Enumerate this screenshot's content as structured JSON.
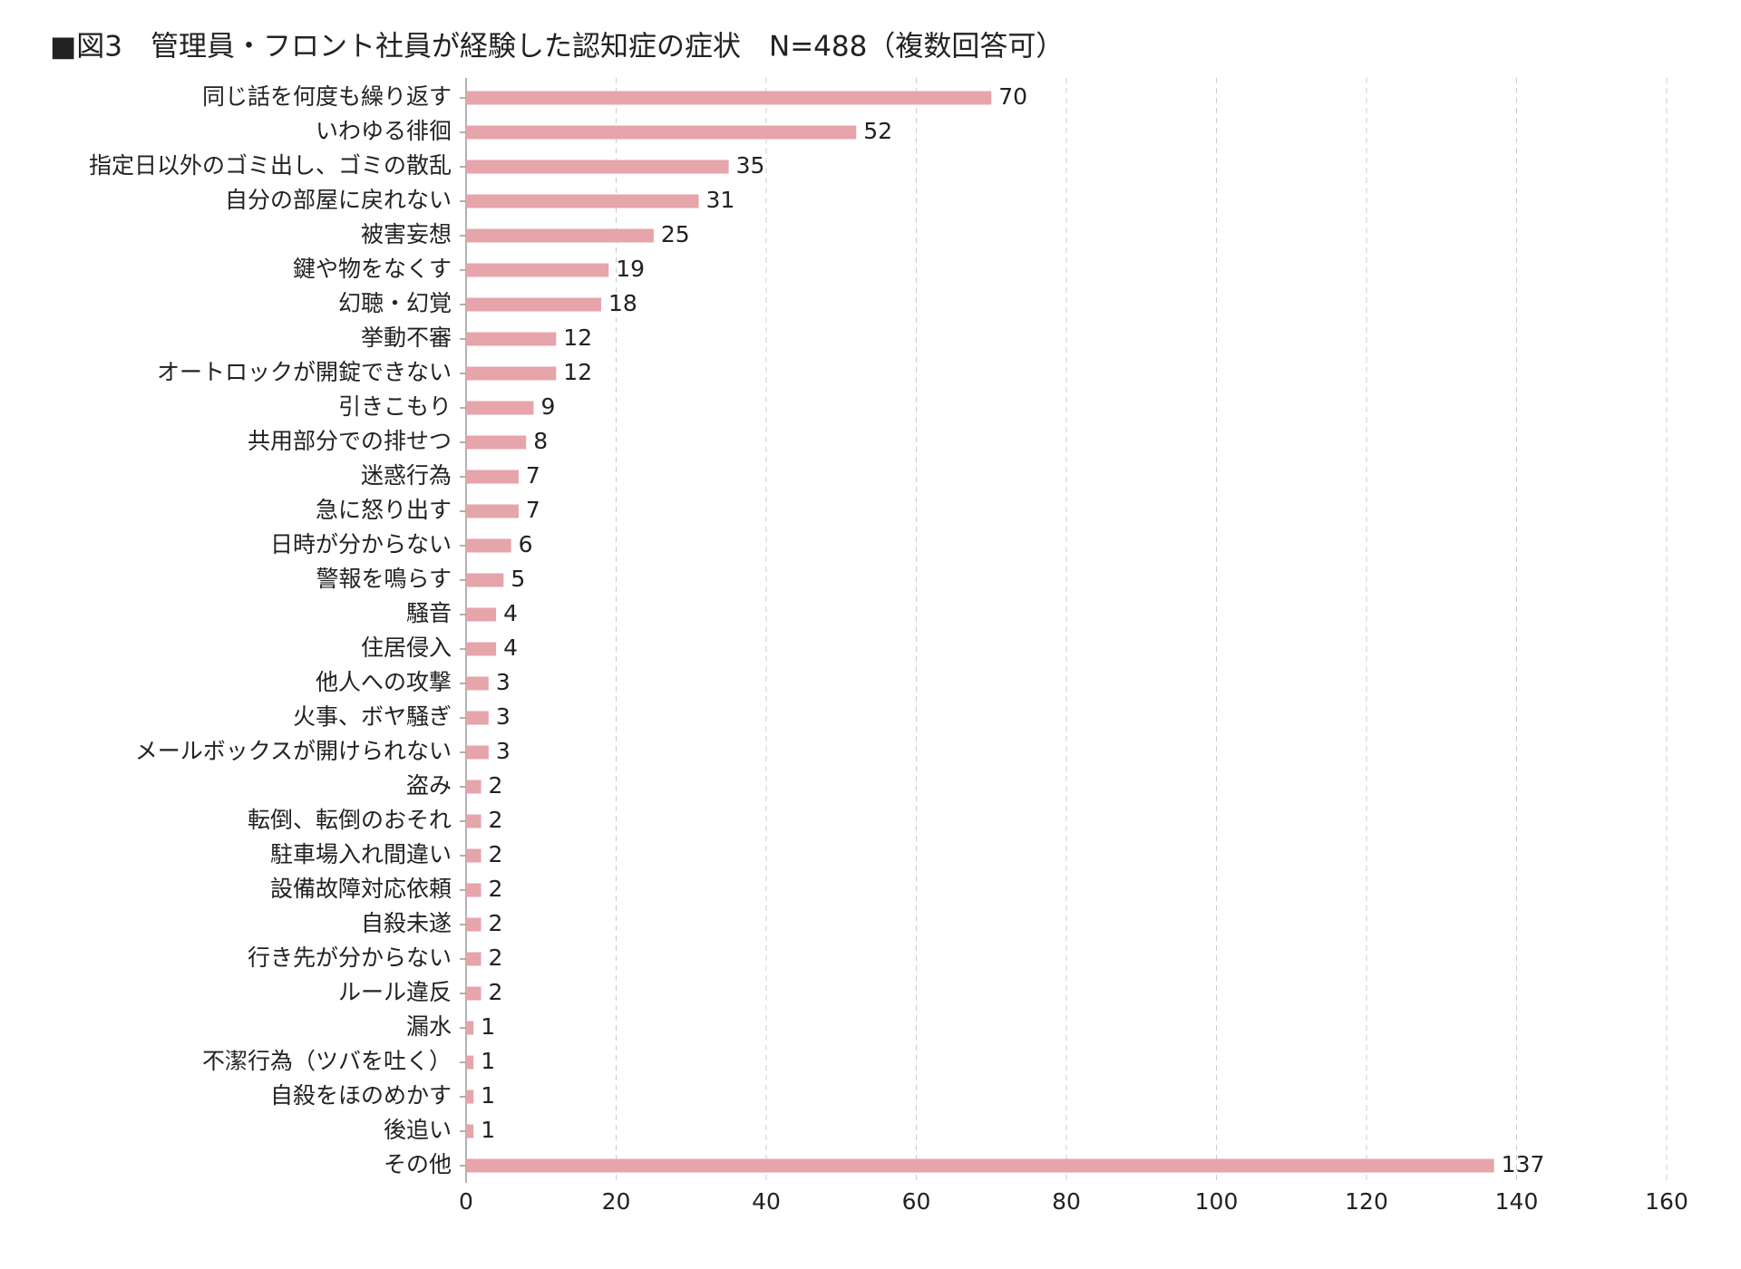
{
  "chart_data": {
    "type": "hbar",
    "title": "■図3　管理員・フロント社員が経験した認知症の症状　N=488（複数回答可）",
    "categories": [
      "同じ話を何度も繰り返す",
      "いわゆる徘徊",
      "指定日以外のゴミ出し、ゴミの散乱",
      "自分の部屋に戻れない",
      "被害妄想",
      "鍵や物をなくす",
      "幻聴・幻覚",
      "挙動不審",
      "オートロックが開錠できない",
      "引きこもり",
      "共用部分での排せつ",
      "迷惑行為",
      "急に怒り出す",
      "日時が分からない",
      "警報を鳴らす",
      "騒音",
      "住居侵入",
      "他人への攻撃",
      "火事、ボヤ騒ぎ",
      "メールボックスが開けられない",
      "盗み",
      "転倒、転倒のおそれ",
      "駐車場入れ間違い",
      "設備故障対応依頼",
      "自殺未遂",
      "行き先が分からない",
      "ルール違反",
      "漏水",
      "不潔行為（ツバを吐く）",
      "自殺をほのめかす",
      "後追い",
      "その他"
    ],
    "values": [
      70,
      52,
      35,
      31,
      25,
      19,
      18,
      12,
      12,
      9,
      8,
      7,
      7,
      6,
      5,
      4,
      4,
      3,
      3,
      3,
      2,
      2,
      2,
      2,
      2,
      2,
      2,
      1,
      1,
      1,
      1,
      137
    ],
    "color": "#e6a4ab",
    "xlim": [
      0,
      160
    ],
    "xticks": [
      0,
      20,
      40,
      60,
      80,
      100,
      120,
      140,
      160
    ],
    "grid": true
  }
}
